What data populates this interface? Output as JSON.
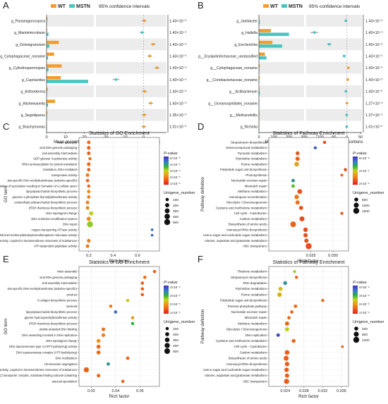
{
  "chart_data": [
    {
      "panel": "A",
      "type": "bar",
      "legend": [
        "WT",
        "MSTN"
      ],
      "legend_extra": "95% confidence intervals",
      "colors": {
        "WT": "#F39C2B",
        "MSTN": "#46C6C2"
      },
      "categories": [
        "g_Parastagonospora",
        "g_Marinimicrobium",
        "g_Dolosigranulum",
        "g_Cytophagaceae_noname",
        "g_Cylindrospermopsis",
        "g_Cupriavidus",
        "g_Arthroderma",
        "g_Alishewanella",
        "g_Segniliparus",
        "g_Brachymonas"
      ],
      "series": [
        {
          "name": "WT",
          "values": [
            0.5,
            0.3,
            6.5,
            4.0,
            8.0,
            7.5,
            0.6,
            4.5,
            0.4,
            0.2
          ]
        },
        {
          "name": "MSTN",
          "values": [
            0.2,
            1.0,
            1.5,
            0.8,
            1.0,
            22.0,
            0.1,
            0.8,
            0.1,
            0.1
          ]
        }
      ],
      "xlabel": "Mean proportions",
      "xticks": [
        "0",
        "10",
        "20"
      ],
      "xlim": [
        0,
        25
      ],
      "diff_xlabel": "Difference in mean proportions",
      "diff_values": [
        0.3,
        -0.8,
        5.0,
        3.2,
        7.0,
        -14.5,
        0.5,
        3.7,
        0.3,
        0.1
      ],
      "diff_xticks": [
        "-20",
        "-10",
        "0"
      ],
      "diff_xlim": [
        -25,
        12
      ],
      "p_values": [
        "1.43×10⁻²",
        "1.43×10⁻²",
        "1.43×10⁻²",
        "1.43×10⁻²",
        "1.43×10⁻²",
        "1.43×10⁻²",
        "1.43×10⁻²",
        "1.43×10⁻²",
        "1.35×10⁻²",
        "1.01×10⁻²"
      ]
    },
    {
      "panel": "B",
      "type": "bar",
      "legend": [
        "WT",
        "MSTN"
      ],
      "legend_extra": "95% confidence intervals",
      "colors": {
        "WT": "#F39C2B",
        "MSTN": "#46C6C2"
      },
      "categories": [
        "g_Janibacter",
        "g_Hallella",
        "g_Escherichia",
        "g__Erysipelotrichaceae_unclassified",
        "g__Cytophagaceae_noname",
        "g__Coriobacteriaceae_noname",
        "g__Actibacterium",
        "g__Oceanospirillales_noname",
        "g__Methanofollis",
        "g_Richelia"
      ],
      "series": [
        {
          "name": "WT",
          "values": [
            2,
            80,
            90,
            40,
            6,
            5,
            2,
            1,
            1,
            1
          ]
        },
        {
          "name": "MSTN",
          "values": [
            6,
            200,
            155,
            50,
            1,
            2,
            6,
            1,
            2,
            2
          ]
        }
      ],
      "xlabel": "Mean proportions",
      "xticks": [
        "0",
        "100",
        "200",
        "300"
      ],
      "xlim": [
        0,
        300
      ],
      "diff_xlabel": "Difference in mean proportions",
      "diff_values": [
        -4,
        -120,
        -65,
        -10,
        5,
        3,
        -4,
        0.3,
        -1,
        -1
      ],
      "diff_xticks": [
        "-100",
        "-50",
        "0",
        "50"
      ],
      "diff_xlim": [
        -150,
        55
      ],
      "p_values": [
        "1.43×10⁻²",
        "1.43×10⁻²",
        "1.43×10⁻²",
        "1.43×10⁻²",
        "1.43×10⁻²",
        "1.43×10⁻²",
        "1.43×10⁻²",
        "1.27×10⁻²",
        "1.27×10⁻²",
        "1.01×10⁻²"
      ]
    },
    {
      "panel": "C",
      "type": "scatter",
      "title": "Statistics of GO Enrichment",
      "ylabel": "GO term",
      "xlabel": "Rich factor",
      "xticks": [
        "0.2",
        "0.4",
        "0.6"
      ],
      "xlim": [
        0.12,
        0.78
      ],
      "legend_color_title": "P-value",
      "legend_color_labels": [
        "5×10⁻⁶",
        "4×10⁻⁶",
        "3×10⁻⁶",
        "2×10⁻⁶",
        "1×10⁻⁶"
      ],
      "legend_size_title": "Unigene_number",
      "legend_sizes": [
        "100",
        "200",
        "300",
        "400",
        "500"
      ],
      "categories": [
        "virion assembly",
        "viral DNA genome packaging",
        "viral assembly intermediate",
        "UDP-glucose 4-epimerase activity",
        "tRNA aminoacylation for protein translation",
        "translation, DNA-mediated",
        "transposase activity",
        "site-specific DNA-methyltransferase (adenine-specific)",
        "negative regulation of sporulation resulting in formation of a cellular spore",
        "lipopolysaccharide biosynthetic process",
        "glucose-1-phosphate thymidylyltransferase activity",
        "extracellular polysaccharide biosynthetic process",
        "dTDP-rhamnose biosynthetic process",
        "DNA topological change",
        "DNA restriction-modification system",
        "DNA repair",
        "copper-transporting ATPase activity",
        "coenzyme F420-dependent N5,N10-methenyltetrahydromethanopterin reductase activity",
        "ATPase activity, coupled to transmembrane movement of substances",
        "ATP-dependent peptidase activity"
      ],
      "x": [
        0.2,
        0.2,
        0.2,
        0.21,
        0.2,
        0.2,
        0.19,
        0.19,
        0.2,
        0.2,
        0.2,
        0.19,
        0.19,
        0.22,
        0.2,
        0.21,
        0.72,
        0.72,
        0.2,
        0.19
      ],
      "pvalue": [
        1.2e-06,
        1e-06,
        1e-06,
        1.3e-06,
        1.2e-06,
        1e-06,
        1.4e-06,
        1.1e-06,
        1.2e-06,
        1.8e-06,
        1.5e-06,
        1.5e-06,
        1.6e-06,
        2.8e-06,
        1.8e-06,
        3e-06,
        4.5e-06,
        4.5e-06,
        1.5e-06,
        1.4e-06
      ],
      "size": [
        120,
        120,
        120,
        80,
        130,
        100,
        110,
        100,
        90,
        120,
        100,
        110,
        110,
        200,
        200,
        500,
        40,
        40,
        130,
        110
      ]
    },
    {
      "panel": "D",
      "type": "scatter",
      "title": "Statistics of Pathway Enrichment",
      "ylabel": "Pathway definition",
      "xlabel": "Rich factor",
      "xticks": [
        "0.025",
        "0.030"
      ],
      "xlim": [
        0.0155,
        0.0335
      ],
      "legend_color_title": "P-value",
      "legend_color_labels": [
        "6×10⁻⁶",
        "4×10⁻⁶",
        "2×10⁻⁶"
      ],
      "legend_size_title": "Unigene_number",
      "legend_sizes": [
        "500",
        "1000",
        "1500"
      ],
      "categories": [
        "Streptomycin biosynthesis",
        "Selenocompound metabolism",
        "Pyruvate metabolism",
        "Pyrimidine metabolism",
        "Purine metabolism",
        "Polyketide sugar unit biosynthesis",
        "Photosynthesis",
        "Nucleotide excision repair",
        "Mismatch repair",
        "Methane metabolism",
        "Homologous recombination",
        "Glycolysis / Gluconeogenesis",
        "Cysteine and methionine metabolism",
        "Cell cycle - Caulobacter",
        "Carbon metabolism",
        "Biosynthesis of amino acids",
        "Aminoacyl-tRNA biosynthesis",
        "Amino sugar and nucleotide sugar metabolism",
        "Alanine, aspartate and glutamate metabolism",
        "ABC transporters"
      ],
      "x": [
        0.0281,
        0.026,
        0.022,
        0.022,
        0.0218,
        0.0328,
        0.032,
        0.021,
        0.021,
        0.0225,
        0.0218,
        0.022,
        0.0228,
        0.032,
        0.023,
        0.021,
        0.0238,
        0.0238,
        0.024,
        0.0245
      ],
      "pvalue": [
        1e-06,
        6.5e-06,
        1.2e-06,
        1.5e-06,
        3e-06,
        1e-06,
        1.5e-06,
        5.5e-06,
        4.5e-06,
        1.2e-06,
        2e-06,
        1.8e-06,
        1e-06,
        1e-06,
        1e-06,
        1.5e-06,
        1e-06,
        1e-06,
        1e-06,
        1e-06
      ],
      "size": [
        300,
        250,
        500,
        700,
        900,
        300,
        200,
        400,
        400,
        1000,
        800,
        700,
        600,
        200,
        1100,
        1500,
        800,
        700,
        700,
        1700
      ]
    },
    {
      "panel": "E",
      "type": "scatter",
      "title": "Statistics of GO Enrichment",
      "ylabel": "GO term",
      "xlabel": "Rich factor",
      "xticks": [
        "0.03",
        "0.04",
        "0.05"
      ],
      "xlim": [
        0.025,
        0.058
      ],
      "legend_color_title": "P-value",
      "legend_color_labels": [
        "4×10⁻⁶",
        "3×10⁻⁶",
        "2×10⁻⁶",
        "1×10⁻⁶"
      ],
      "legend_size_title": "Unigene_number",
      "legend_sizes": [
        "100",
        "200",
        "300",
        "400",
        "500"
      ],
      "categories": [
        "virion assembly",
        "viral DNA genome packaging",
        "viral assembly intermediate",
        "site-specific DNA-methyltransferase (adenine-specific)",
        "provirus",
        "O antigen biosynthetic process",
        "nucleoid",
        "lipopolysaccharide biosynthetic process",
        "glycine hydroxymethyltransferase activity",
        "dTDP-rhamnose biosynthetic process",
        "double-stranded DNA binding",
        "DNA unwinding involved in DNA replication",
        "DNA topological change",
        "DNA topoisomerase type II (ATP-hydrolyzing) activity",
        "DNA topoisomerase complex (ATP-hydrolyzing)",
        "DNA methylation",
        "chromosome segregation",
        "ATPase activity, coupled to transmembrane movement of substances",
        "ATP-binding cassette (ABC) transporter complex, substrate-binding subunit-containing",
        "asexual sporulation"
      ],
      "x": [
        0.056,
        0.052,
        0.051,
        0.051,
        0.051,
        0.045,
        0.038,
        0.04,
        0.047,
        0.047,
        0.035,
        0.035,
        0.033,
        0.033,
        0.033,
        0.045,
        0.037,
        0.028,
        0.033,
        0.043
      ],
      "pvalue": [
        1e-06,
        1.2e-06,
        1e-06,
        1e-06,
        1e-06,
        2.5e-06,
        1.5e-06,
        4.5e-06,
        2e-06,
        3.5e-06,
        1.3e-06,
        1.5e-06,
        1.8e-06,
        1.2e-06,
        1.2e-06,
        1.1e-06,
        4e-06,
        1.1e-06,
        1.2e-06,
        1.1e-06
      ],
      "size": [
        100,
        100,
        100,
        100,
        100,
        100,
        100,
        100,
        100,
        100,
        150,
        150,
        180,
        200,
        200,
        120,
        120,
        400,
        150,
        100
      ]
    },
    {
      "panel": "F",
      "type": "scatter",
      "title": "Statistics of Pathway Enrichment",
      "ylabel": "Pathway definition",
      "xlabel": "Rich factor",
      "xticks": [
        "0.024",
        "0.028",
        "0.032",
        "0.036"
      ],
      "xlim": [
        0.0205,
        0.0375
      ],
      "legend_color_title": "P-value",
      "legend_color_labels": [
        "4×10⁻⁶",
        "3×10⁻⁶",
        "2×10⁻⁶",
        "1×10⁻⁶"
      ],
      "legend_size_title": "Unigene_number",
      "legend_sizes": [
        "400",
        "800",
        "1200"
      ],
      "categories": [
        "Thiamine metabolism",
        "Streptomycin biosynthesis",
        "RNA degradation",
        "Pyrimidine metabolism",
        "Purine metabolism",
        "Polyketide sugar unit biosynthesis",
        "Pentose phosphate pathway",
        "Nucleotide excision repair",
        "Mismatch repair",
        "Methane metabolism",
        "Glycolysis / Gluconeogenesis",
        "DNA replication",
        "Cysteine and methionine metabolism",
        "Cell cycle - Caulobacter",
        "Carbon metabolism",
        "Biosynthesis of amino acids",
        "Aminoacyl-tRNA biosynthesis",
        "Amino sugar and nucleotide sugar metabolism",
        "Alanine, aspartate and glutamate metabolism",
        "ABC transporters"
      ],
      "x": [
        0.026,
        0.0264,
        0.024,
        0.023,
        0.0228,
        0.032,
        0.0262,
        0.0254,
        0.0248,
        0.0244,
        0.0244,
        0.0225,
        0.0258,
        0.0362,
        0.0244,
        0.0242,
        0.0244,
        0.0243,
        0.0244,
        0.0243
      ],
      "pvalue": [
        3e-06,
        1e-06,
        4e-06,
        2.5e-06,
        2.2e-06,
        1.2e-06,
        1.2e-06,
        1.1e-06,
        1.1e-06,
        1.1e-06,
        2.8e-06,
        4.8e-06,
        1.1e-06,
        1e-06,
        1e-06,
        1e-06,
        1e-06,
        1e-06,
        1e-06,
        1e-06
      ],
      "size": [
        150,
        200,
        400,
        500,
        600,
        200,
        300,
        250,
        250,
        500,
        500,
        300,
        400,
        100,
        700,
        800,
        600,
        600,
        500,
        900
      ]
    }
  ]
}
